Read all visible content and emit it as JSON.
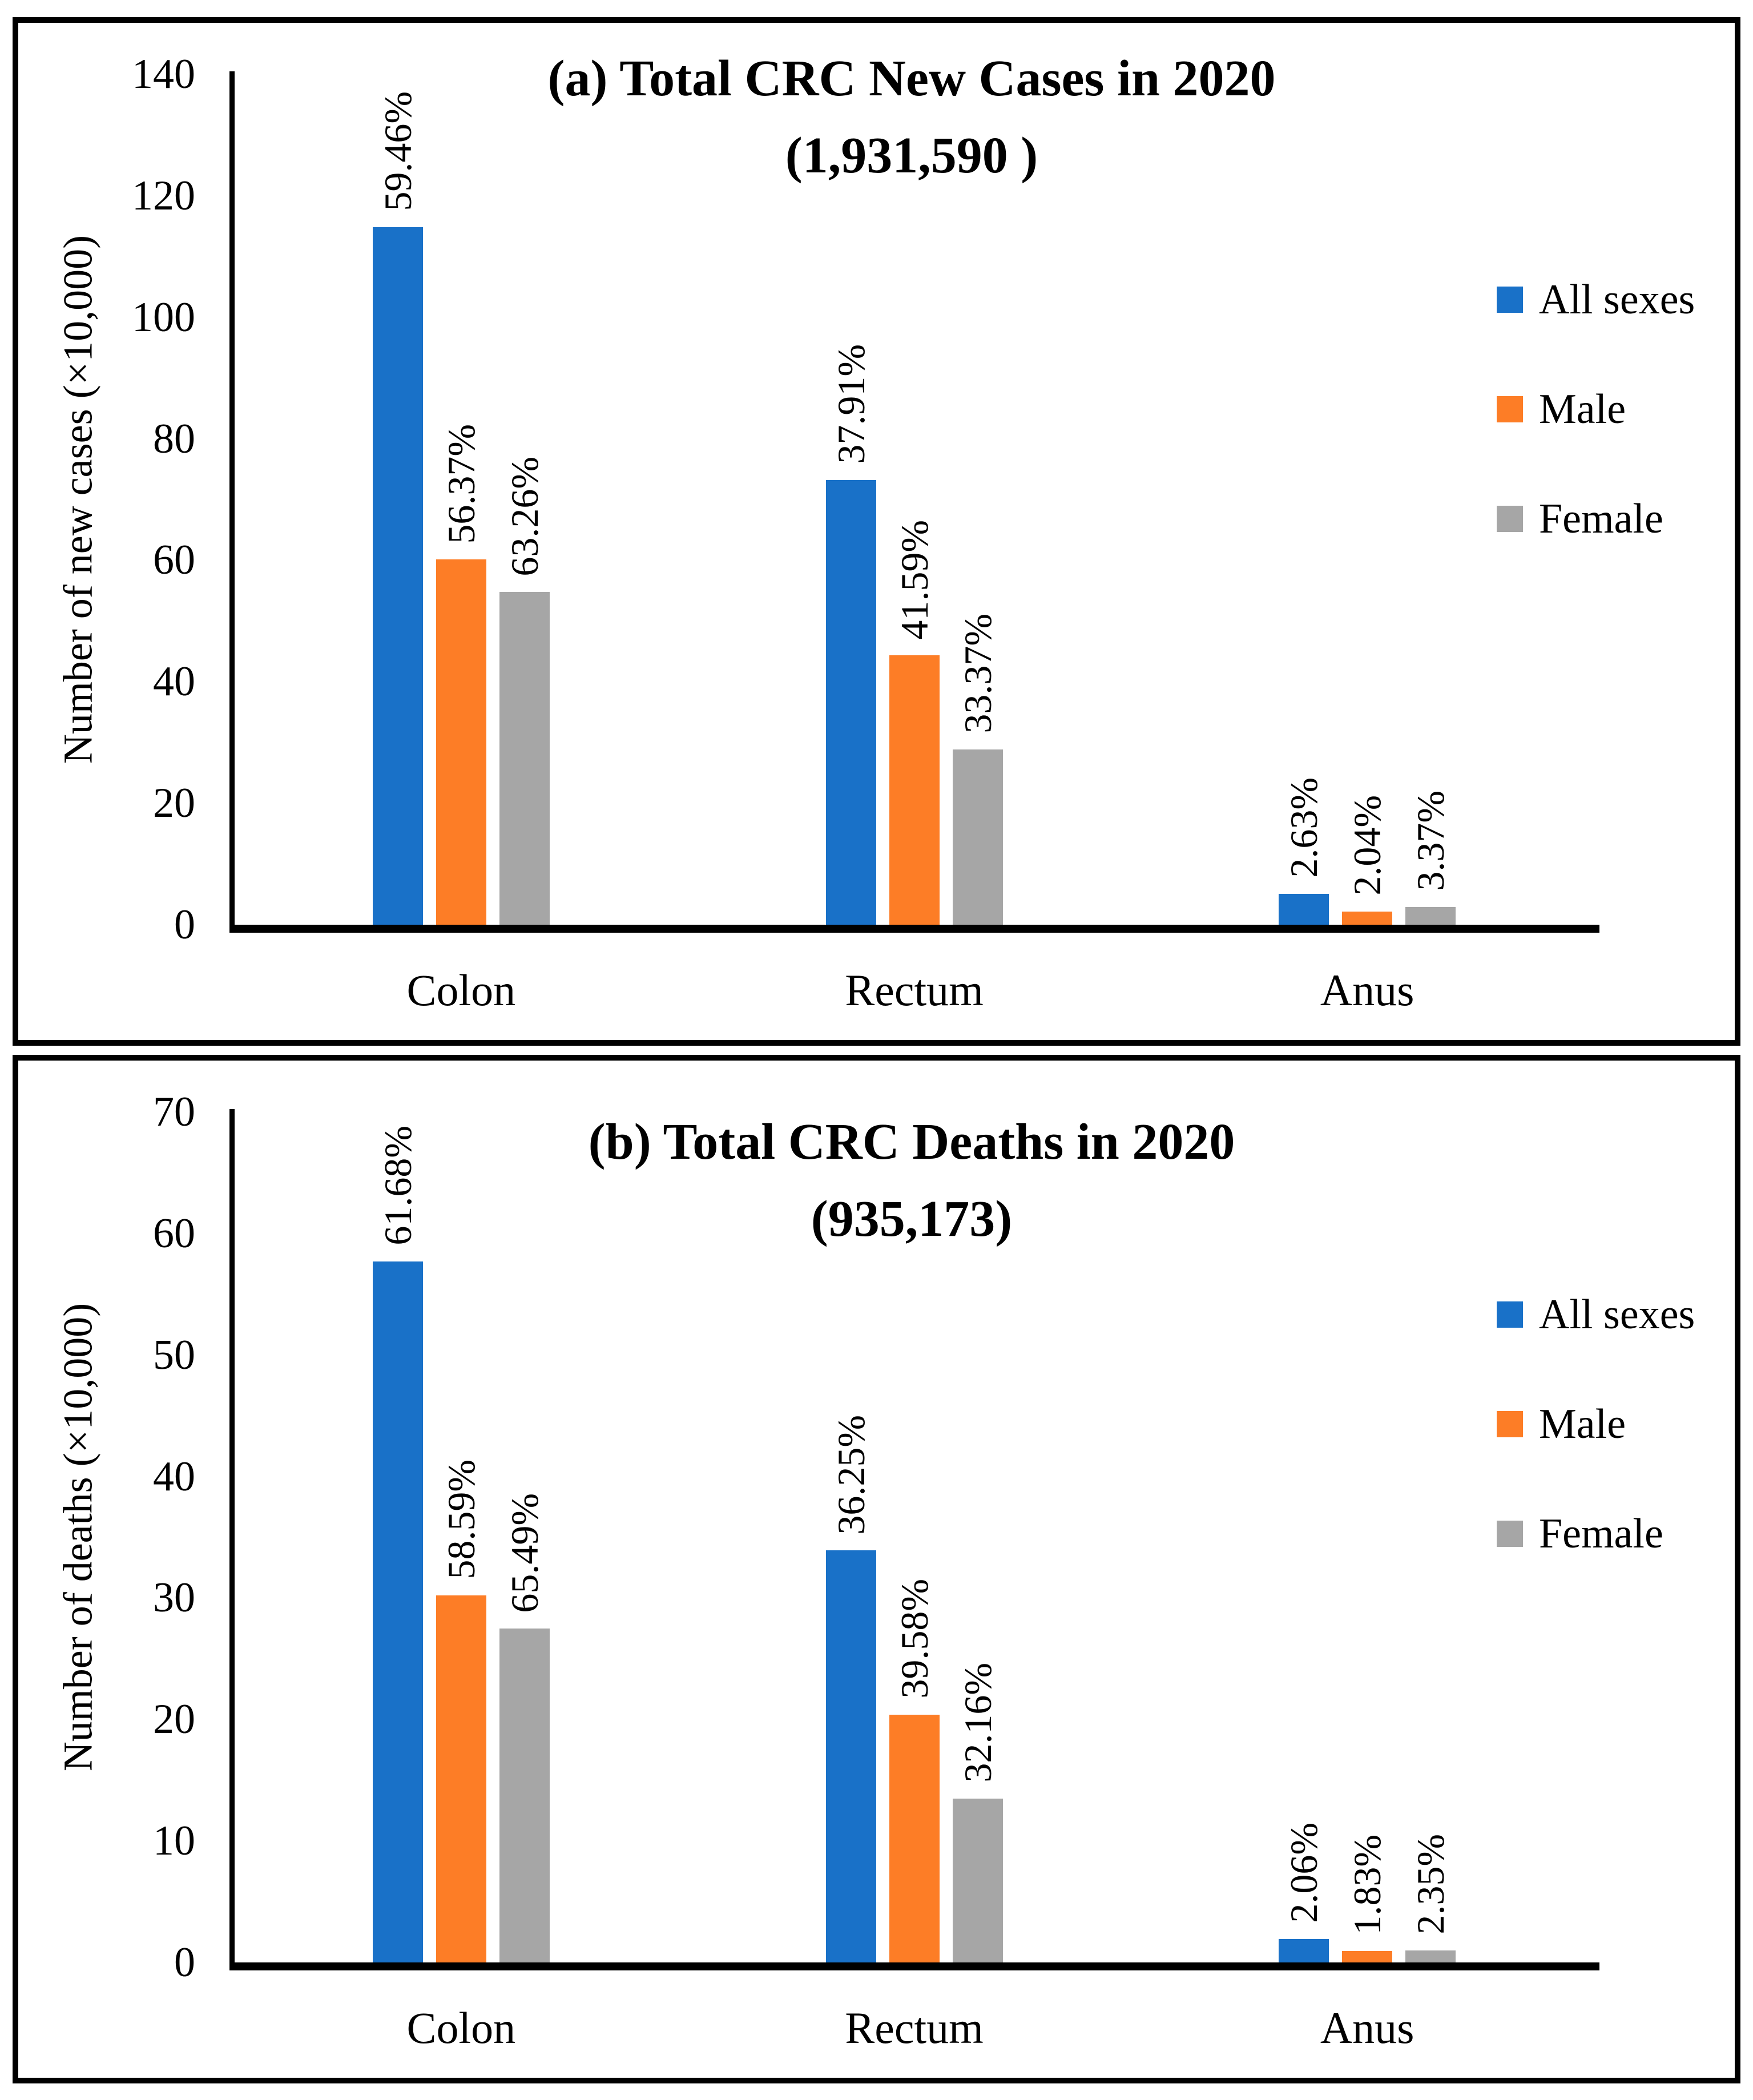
{
  "chart_data": [
    {
      "type": "bar",
      "title": "(a) Total CRC New Cases in 2020",
      "subtitle": "(1,931,590 )",
      "ylabel": "Number of new cases (×10,000)",
      "xlabel": "",
      "categories": [
        "Colon",
        "Rectum",
        "Anus"
      ],
      "ylim": [
        0,
        140
      ],
      "yticks": [
        0,
        20,
        40,
        60,
        80,
        100,
        120,
        140
      ],
      "grid": false,
      "legend_position": "right",
      "axis_color": "#000000",
      "series": [
        {
          "name": "All sexes",
          "color": "#1971C8",
          "values": [
            114.85,
            73.22,
            5.09
          ],
          "bar_labels": [
            "59.46%",
            "37.91%",
            "2.63%"
          ]
        },
        {
          "name": "Male",
          "color": "#FD7D26",
          "values": [
            60.09,
            44.33,
            2.17
          ],
          "bar_labels": [
            "56.37%",
            "41.59%",
            "2.04%"
          ]
        },
        {
          "name": "Female",
          "color": "#A6A6A6",
          "values": [
            54.76,
            28.89,
            2.91
          ],
          "bar_labels": [
            "63.26%",
            "33.37%",
            "3.37%"
          ]
        }
      ]
    },
    {
      "type": "bar",
      "title": "(b) Total CRC Deaths in 2020",
      "subtitle": "(935,173)",
      "ylabel": "Number of deaths (×10,000)",
      "xlabel": "",
      "categories": [
        "Colon",
        "Rectum",
        "Anus"
      ],
      "ylim": [
        0,
        70
      ],
      "yticks": [
        0,
        10,
        20,
        30,
        40,
        50,
        60,
        70
      ],
      "grid": false,
      "legend_position": "right",
      "axis_color": "#000000",
      "series": [
        {
          "name": "All sexes",
          "color": "#1971C8",
          "values": [
            57.69,
            33.9,
            1.93
          ],
          "bar_labels": [
            "61.68%",
            "36.25%",
            "2.06%"
          ]
        },
        {
          "name": "Male",
          "color": "#FD7D26",
          "values": [
            30.21,
            20.41,
            0.94
          ],
          "bar_labels": [
            "58.59%",
            "39.58%",
            "1.83%"
          ]
        },
        {
          "name": "Female",
          "color": "#A6A6A6",
          "values": [
            27.47,
            13.49,
            0.99
          ],
          "bar_labels": [
            "65.49%",
            "32.16%",
            "2.35%"
          ]
        }
      ]
    }
  ]
}
